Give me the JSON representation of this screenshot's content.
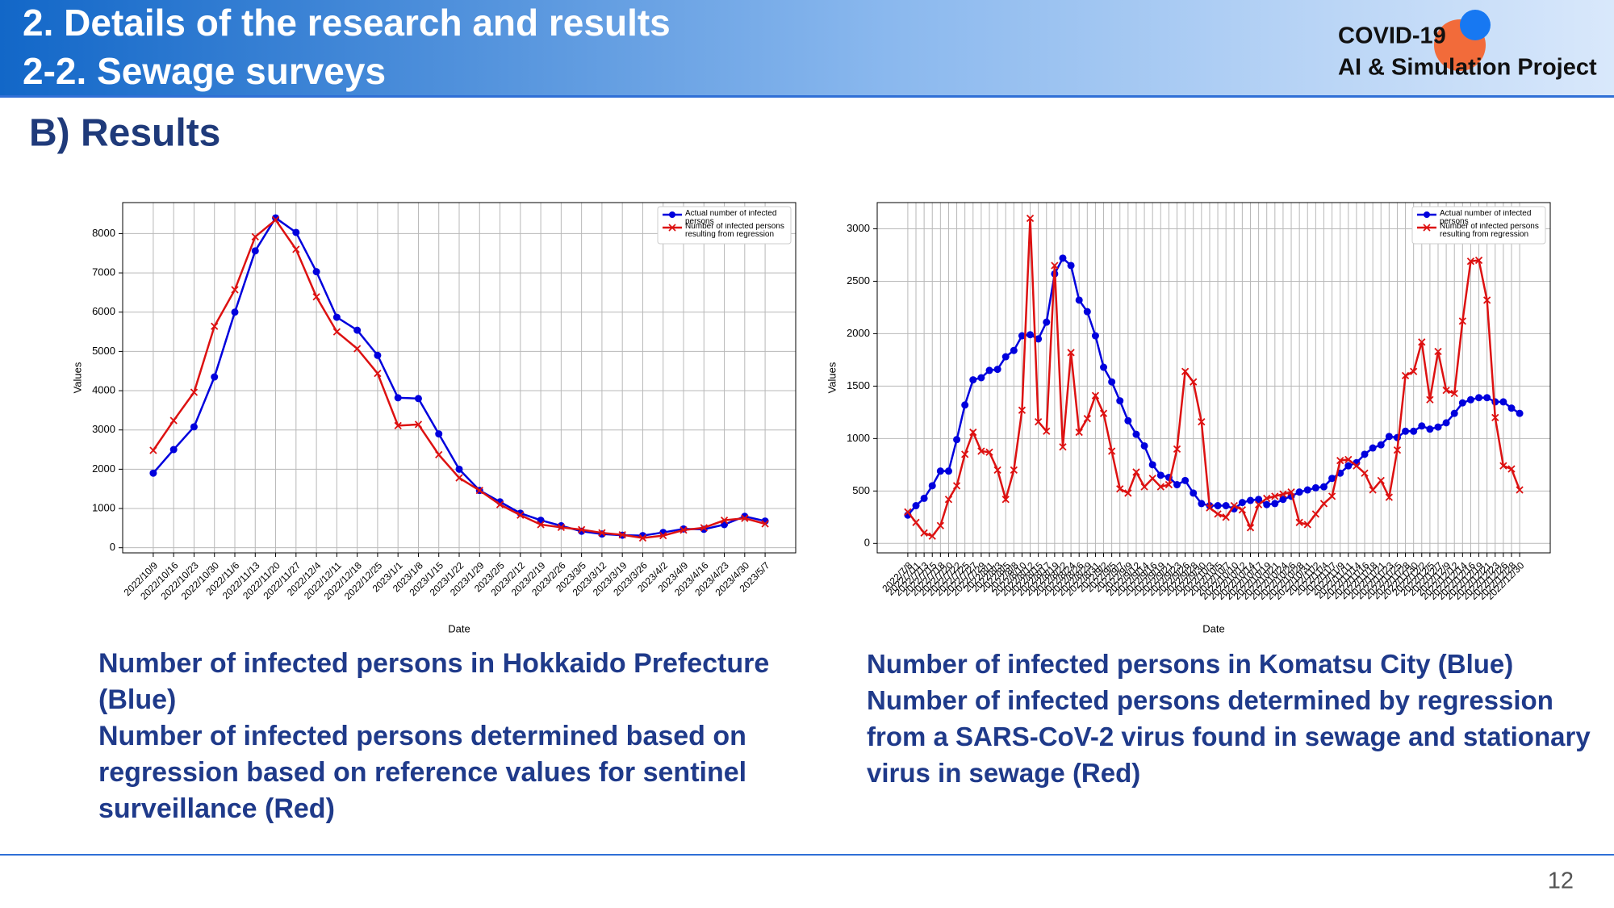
{
  "header": {
    "title": "2.  Details of the research and results",
    "subtitle": "2-2.   Sewage surveys"
  },
  "logo": {
    "line1": "COVID-19",
    "line2": "AI & Simulation Project"
  },
  "section": "B)  Results",
  "chart_data": [
    {
      "type": "line",
      "xlabel": "Date",
      "ylabel": "Values",
      "categories": [
        "2022/10/9",
        "2022/10/16",
        "2022/10/23",
        "2022/10/30",
        "2022/11/6",
        "2022/11/13",
        "2022/11/20",
        "2022/11/27",
        "2022/12/4",
        "2022/12/11",
        "2022/12/18",
        "2022/12/25",
        "2023/1/1",
        "2023/1/8",
        "2023/1/15",
        "2023/1/22",
        "2023/1/29",
        "2023/2/5",
        "2023/2/12",
        "2023/2/19",
        "2023/2/26",
        "2023/3/5",
        "2023/3/12",
        "2023/3/19",
        "2023/3/26",
        "2023/4/2",
        "2023/4/9",
        "2023/4/16",
        "2023/4/23",
        "2023/4/30",
        "2023/5/7"
      ],
      "series": [
        {
          "name": "Actual number of infected persons",
          "color": "#0000dd",
          "marker": "o",
          "values": [
            1900,
            2500,
            3080,
            4350,
            6000,
            7560,
            8400,
            8030,
            7030,
            5870,
            5540,
            4900,
            3820,
            3800,
            2900,
            2000,
            1460,
            1170,
            880,
            700,
            560,
            420,
            350,
            320,
            310,
            390,
            480,
            470,
            590,
            800,
            680
          ]
        },
        {
          "name": "Number of infected persons resulting from regression",
          "color": "#dd1111",
          "marker": "x",
          "values": [
            2480,
            3240,
            3960,
            5640,
            6570,
            7920,
            8350,
            7600,
            6390,
            5500,
            5070,
            4440,
            3110,
            3140,
            2370,
            1780,
            1460,
            1100,
            830,
            590,
            520,
            460,
            380,
            330,
            250,
            310,
            450,
            510,
            700,
            750,
            610
          ]
        }
      ],
      "ylim": [
        -130,
        8790
      ],
      "yticks": [
        0,
        1000,
        2000,
        3000,
        4000,
        5000,
        6000,
        7000,
        8000
      ],
      "grid": true,
      "legend": "upper right"
    },
    {
      "type": "line",
      "xlabel": "Date",
      "ylabel": "Values",
      "categories": [
        "2022/7/8",
        "2022/7/11",
        "2022/7/13",
        "2022/7/15",
        "2022/7/18",
        "2022/7/20",
        "2022/7/22",
        "2022/7/25",
        "2022/7/27",
        "2022/7/29",
        "2022/8/1",
        "2022/8/3",
        "2022/8/5",
        "2022/8/8",
        "2022/8/10",
        "2022/8/12",
        "2022/8/15",
        "2022/8/17",
        "2022/8/19",
        "2022/8/22",
        "2022/8/24",
        "2022/8/26",
        "2022/8/29",
        "2022/8/31",
        "2022/9/2",
        "2022/9/5",
        "2022/9/7",
        "2022/9/9",
        "2022/9/12",
        "2022/9/14",
        "2022/9/16",
        "2022/9/19",
        "2022/9/21",
        "2022/9/23",
        "2022/9/26",
        "2022/9/28",
        "2022/9/30",
        "2022/10/3",
        "2022/10/5",
        "2022/10/7",
        "2022/10/10",
        "2022/10/12",
        "2022/10/14",
        "2022/10/17",
        "2022/10/19",
        "2022/10/21",
        "2022/10/24",
        "2022/10/26",
        "2022/10/28",
        "2022/10/31",
        "2022/11/2",
        "2022/11/4",
        "2022/11/7",
        "2022/11/9",
        "2022/11/11",
        "2022/11/14",
        "2022/11/16",
        "2022/11/18",
        "2022/11/21",
        "2022/11/23",
        "2022/11/25",
        "2022/11/28",
        "2022/11/30",
        "2022/12/2",
        "2022/12/5",
        "2022/12/7",
        "2022/12/9",
        "2022/12/12",
        "2022/12/14",
        "2022/12/16",
        "2022/12/19",
        "2022/12/21",
        "2022/12/23",
        "2022/12/26",
        "2022/12/28",
        "2022/12/30"
      ],
      "series": [
        {
          "name": "Actual number of infected persons",
          "color": "#0000dd",
          "marker": "o",
          "values": [
            270,
            360,
            430,
            550,
            690,
            690,
            990,
            1320,
            1560,
            1580,
            1650,
            1660,
            1780,
            1840,
            1980,
            1990,
            1950,
            2110,
            2570,
            2720,
            2650,
            2320,
            2210,
            1980,
            1680,
            1540,
            1360,
            1170,
            1040,
            930,
            750,
            650,
            630,
            560,
            600,
            480,
            380,
            360,
            360,
            360,
            330,
            390,
            410,
            420,
            370,
            380,
            420,
            450,
            490,
            510,
            530,
            540,
            620,
            670,
            740,
            770,
            850,
            910,
            940,
            1020,
            1010,
            1070,
            1070,
            1120,
            1090,
            1110,
            1150,
            1240,
            1340,
            1370,
            1390,
            1390,
            1350,
            1350,
            1290,
            1240
          ]
        },
        {
          "name": "Number of infected persons resulting from regression",
          "color": "#dd1111",
          "marker": "x",
          "values": [
            300,
            200,
            100,
            70,
            170,
            420,
            550,
            850,
            1060,
            880,
            870,
            700,
            420,
            700,
            1270,
            3100,
            1160,
            1070,
            2650,
            920,
            1820,
            1060,
            1190,
            1410,
            1240,
            880,
            520,
            480,
            680,
            540,
            620,
            540,
            560,
            900,
            1640,
            1540,
            1160,
            340,
            280,
            250,
            360,
            320,
            150,
            370,
            430,
            450,
            470,
            490,
            200,
            180,
            280,
            380,
            450,
            790,
            800,
            740,
            670,
            510,
            600,
            440,
            890,
            1600,
            1640,
            1920,
            1370,
            1830,
            1460,
            1430,
            2120,
            2690,
            2700,
            2320,
            1200,
            740,
            710,
            510
          ]
        }
      ],
      "ylim": [
        -90,
        3250
      ],
      "yticks": [
        0,
        500,
        1000,
        1500,
        2000,
        2500,
        3000
      ],
      "grid": true,
      "legend": "upper right"
    }
  ],
  "captions": [
    [
      "Number of infected persons in Hokkaido Prefecture (Blue)",
      "Number of infected persons determined based on regression based on reference values for sentinel surveillance (Red)"
    ],
    [
      "Number of infected persons in Komatsu City (Blue)",
      "Number of infected persons determined by regression from a SARS-CoV-2 virus found in sewage and stationary virus in sewage (Red)"
    ]
  ],
  "page_number": "12"
}
